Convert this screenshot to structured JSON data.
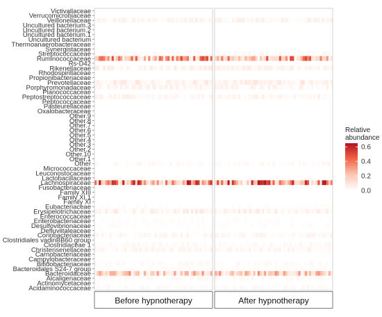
{
  "chart_data": {
    "type": "heatmap",
    "title": "",
    "xlabel": "",
    "ylabel": "",
    "panels": [
      "Before hypnotherapy",
      "After hypnotherapy"
    ],
    "rows": [
      "Victivallaceae",
      "Verrucomicrobiaceae",
      "Veillonellaceae",
      "Uncultured bacterium.3",
      "Uncultured bacterium.2",
      "Uncultured bacterium.1",
      "Uncultured bacterium",
      "Thermoanaerobacteraceae",
      "Synergistaceae",
      "Streptococcaceae",
      "Ruminococcaceae",
      "Rs-D42",
      "Rikenellaceae",
      "Rhodospirillaceae",
      "Propionibacteriaceae",
      "Prevotellaceae",
      "Porphyromonadaceae",
      "Planococcaceae",
      "Peptostreptococcaceae",
      "Peptococcaceae",
      "Pasteurellaceae",
      "Oxalobacteraceae",
      "Other.9",
      "Other.8",
      "Other.7",
      "Other.6",
      "Other.5",
      "Other.4",
      "Other.3",
      "Other.2",
      "Other.10",
      "Other.1",
      "Other",
      "Micrococcaceae",
      "Leuconostocaceae",
      "Lactobacillaceae",
      "Lachnospiraceae",
      "Fusobacteriaceae",
      "Family XIII",
      "Family XI.1",
      "Family XI",
      "Eubacteriaceae",
      "Erysipelotrichaceae",
      "Enterococcaceae",
      "Enterobacteriaceae",
      "Desulfovibrionaceae",
      "Defluviitaleaceae",
      "Coriobacteriaceae",
      "Clostridiales vadinBB60 group",
      "Clostridiaceae 1",
      "Christensenellaceae",
      "Carnobacteriaceae",
      "Campylobacteraceae",
      "Bifidobacteriaceae",
      "Bacteroidales S24-7 group",
      "Bacteroidaceae",
      "Alcaligenaceae",
      "Actinomycetaceae",
      "Acidaminococcaceae"
    ],
    "samples_per_panel": 55,
    "row_mean_abundance": {
      "Veillonellaceae": 0.04,
      "Streptococcaceae": 0.02,
      "Ruminococcaceae": 0.3,
      "Rikenellaceae": 0.05,
      "Prevotellaceae": 0.06,
      "Porphyromonadaceae": 0.04,
      "Peptostreptococcaceae": 0.04,
      "Lachnospiraceae": 0.38,
      "Erysipelotrichaceae": 0.05,
      "Coriobacteriaceae": 0.03,
      "Christensenellaceae": 0.03,
      "Bacteroidaceae": 0.2,
      "Bifidobacteriaceae": 0.02,
      "Alcaligenaceae": 0.02,
      "Acidaminococcaceae": 0.02,
      "Other": 0.02,
      "Clostridiaceae 1": 0.02,
      "Eubacteriaceae": 0.01,
      "Enterobacteriaceae": 0.01,
      "Desulfovibrionaceae": 0.01,
      "Lactobacillaceae": 0.01,
      "Bacteroidales S24-7 group": 0.01
    },
    "legend": {
      "title_line1": "Relative",
      "title_line2": "abundance",
      "ticks": [
        "0.6",
        "0.4",
        "0.2",
        "0.0"
      ],
      "tick_values": [
        0.6,
        0.4,
        0.2,
        0.0
      ],
      "range": [
        0,
        0.65
      ],
      "color_low": "#ffffff",
      "color_high": "#b2141e",
      "placement": "right"
    }
  }
}
